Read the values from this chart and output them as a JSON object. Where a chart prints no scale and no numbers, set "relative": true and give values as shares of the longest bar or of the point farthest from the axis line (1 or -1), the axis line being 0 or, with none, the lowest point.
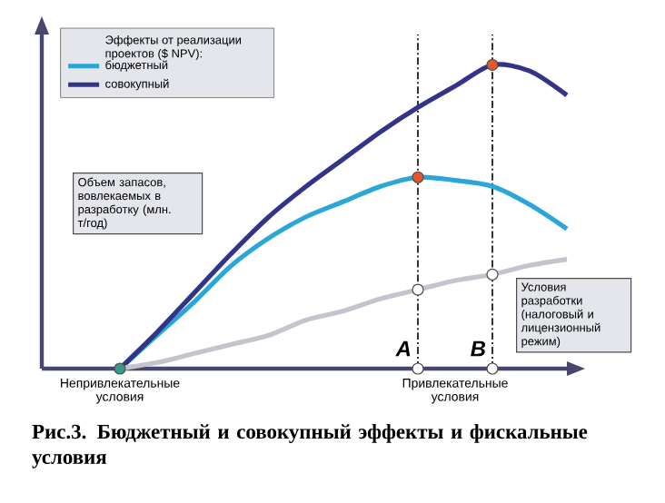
{
  "chart_data": {
    "type": "line",
    "relative": true,
    "title": "Рис.3. Бюджетный и совокупный эффекты и фискальные условия",
    "legend_title": "Эффекты от реализации проектов ($ NPV):",
    "legend": "top left",
    "categories": [
      "Непривлекательные условия",
      null,
      null,
      null,
      null,
      null,
      null,
      null,
      null,
      "Привлекательные условия",
      null,
      null,
      null
    ],
    "series": [
      {
        "name": "бюджетный",
        "color": "#2aa7d8",
        "values": [
          0,
          0.11,
          0.22,
          0.34,
          0.43,
          0.5,
          0.55,
          0.6,
          0.63,
          0.62,
          0.6,
          0.54,
          0.46
        ]
      },
      {
        "name": "совокупный",
        "color": "#34338a",
        "values": [
          0,
          0.12,
          0.25,
          0.38,
          0.5,
          0.6,
          0.69,
          0.78,
          0.86,
          0.93,
          1,
          0.98,
          0.9
        ]
      },
      {
        "color": "#c4c4cc",
        "values": [
          0,
          0.02,
          0.05,
          0.08,
          0.11,
          0.16,
          0.19,
          0.23,
          0.26,
          0.29,
          0.31,
          0.34,
          0.36
        ]
      },
      {
        "type": "scatter",
        "color": "#e8572a",
        "values": [
          null,
          null,
          null,
          null,
          null,
          null,
          null,
          null,
          0.63,
          null,
          1,
          null,
          null
        ]
      },
      {
        "type": "scatter",
        "color": "#ffffff",
        "values": [
          null,
          null,
          null,
          null,
          null,
          null,
          null,
          null,
          0.26,
          null,
          0.31,
          null,
          null
        ]
      },
      {
        "type": "scatter",
        "color": "#ffffff",
        "values": [
          null,
          null,
          null,
          null,
          null,
          null,
          null,
          null,
          0,
          null,
          0,
          null,
          null
        ]
      },
      {
        "type": "scatter",
        "color": "#3a9a8a",
        "values": [
          0,
          null,
          null,
          null,
          null,
          null,
          null,
          null,
          null,
          null,
          null,
          null,
          null
        ]
      }
    ],
    "annotations": [
      "Объем запасов, вовлекаемых в разработку (млн. т/год)",
      "Условия разработки (налоговый и лицензионный режим)",
      "A",
      "B"
    ]
  }
}
